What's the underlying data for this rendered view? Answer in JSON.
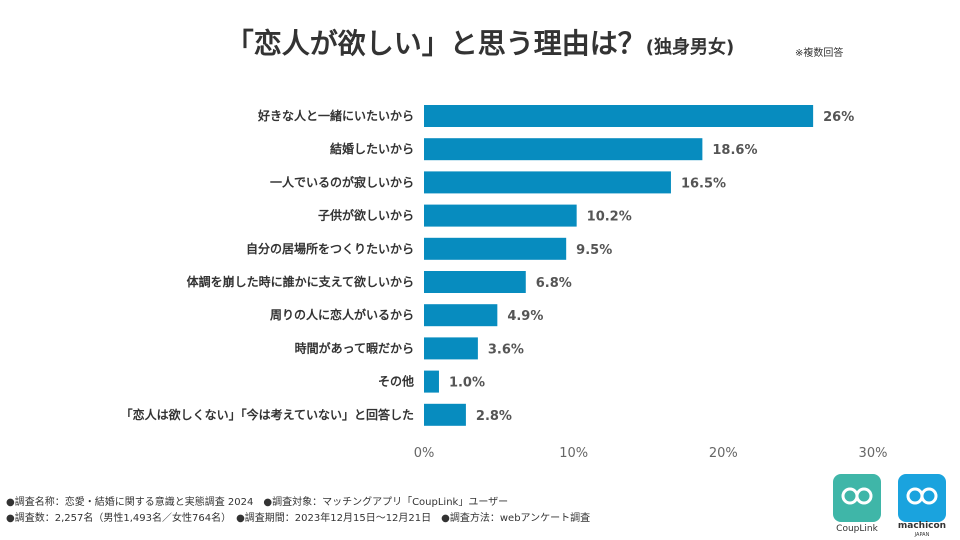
{
  "title": {
    "main": "「恋人が欲しい」と思う理由は？",
    "sub": "(独身男女)"
  },
  "note": "※複数回答",
  "chart_data": {
    "type": "bar",
    "orientation": "horizontal",
    "categories": [
      "好きな人と一緒にいたいから",
      "結婚したいから",
      "一人でいるのが寂しいから",
      "子供が欲しいから",
      "自分の居場所をつくりたいから",
      "体調を崩した時に誰かに支えて欲しいから",
      "周りの人に恋人がいるから",
      "時間があって暇だから",
      "その他",
      "「恋人は欲しくない」「今は考えていない」と回答した"
    ],
    "values": [
      26,
      18.6,
      16.5,
      10.2,
      9.5,
      6.8,
      4.9,
      3.6,
      1.0,
      2.8
    ],
    "value_labels": [
      "26%",
      "18.6%",
      "16.5%",
      "10.2%",
      "9.5%",
      "6.8%",
      "4.9%",
      "3.6%",
      "1.0%",
      "2.8%"
    ],
    "xlim": [
      0,
      30
    ],
    "xticks": [
      0,
      10,
      20,
      30
    ],
    "xtick_labels": [
      "0%",
      "10%",
      "20%",
      "30%"
    ],
    "color": "#078cbf",
    "grid": false
  },
  "footer": {
    "line1": "●調査名称：恋愛・結婚に関する意識と実態調査 2024　●調査対象：マッチングアプリ「CoupLink」ユーザー",
    "line2": "●調査数：2,257名（男性1,493名／女性764名）　●調査期間：2023年12月15日～12月21日　●調査方法：webアンケート調査"
  },
  "logos": {
    "couplink": "CoupLink",
    "machicon": "machicon",
    "machicon_sub": "JAPAN"
  }
}
